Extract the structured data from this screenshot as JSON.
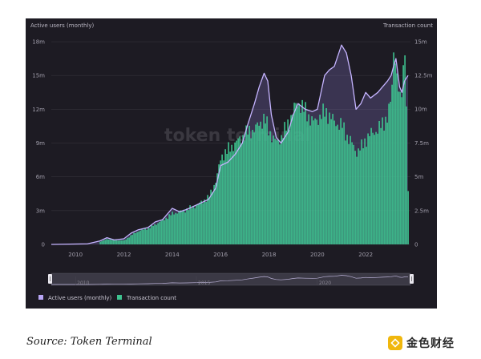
{
  "chart_data": {
    "type": "bar+line",
    "left_axis_title": "Active users (monthly)",
    "right_axis_title": "Transaction count",
    "watermark": "token terminal",
    "left_ticks": [
      "0",
      "3m",
      "6m",
      "9m",
      "12m",
      "15m",
      "18m"
    ],
    "left_tick_values": [
      0,
      3,
      6,
      9,
      12,
      15,
      18
    ],
    "right_ticks": [
      "0",
      "2.5m",
      "5m",
      "7.5m",
      "10m",
      "12.5m",
      "15m"
    ],
    "right_tick_values": [
      0,
      2.5,
      5,
      7.5,
      10,
      12.5,
      15
    ],
    "x_ticks": [
      "2010",
      "2012",
      "2014",
      "2016",
      "2018",
      "2020",
      "2022"
    ],
    "x_tick_values": [
      2010,
      2012,
      2014,
      2016,
      2018,
      2020,
      2022
    ],
    "xlim": [
      2009.0,
      2023.85
    ],
    "ylim_left": [
      0,
      18.5
    ],
    "ylim_right": [
      0,
      15.4
    ],
    "grid": true,
    "legend_position": "bottom-left",
    "series": [
      {
        "name": "Active users (monthly)",
        "axis": "left",
        "type": "line",
        "color": "#c5b4ff",
        "points": [
          [
            2009.0,
            0.0
          ],
          [
            2010.5,
            0.05
          ],
          [
            2011.0,
            0.3
          ],
          [
            2011.3,
            0.6
          ],
          [
            2011.6,
            0.4
          ],
          [
            2012.0,
            0.5
          ],
          [
            2012.3,
            1.0
          ],
          [
            2012.6,
            1.3
          ],
          [
            2013.0,
            1.5
          ],
          [
            2013.3,
            2.0
          ],
          [
            2013.6,
            2.2
          ],
          [
            2014.0,
            3.2
          ],
          [
            2014.3,
            2.9
          ],
          [
            2014.6,
            3.1
          ],
          [
            2015.0,
            3.5
          ],
          [
            2015.5,
            4.0
          ],
          [
            2015.8,
            5.0
          ],
          [
            2016.0,
            7.0
          ],
          [
            2016.3,
            7.3
          ],
          [
            2016.6,
            8.0
          ],
          [
            2016.9,
            9.0
          ],
          [
            2017.1,
            10.5
          ],
          [
            2017.4,
            12.5
          ],
          [
            2017.6,
            14.0
          ],
          [
            2017.8,
            15.2
          ],
          [
            2017.95,
            14.5
          ],
          [
            2018.1,
            11.5
          ],
          [
            2018.3,
            9.5
          ],
          [
            2018.5,
            9.0
          ],
          [
            2018.8,
            10.0
          ],
          [
            2019.0,
            11.5
          ],
          [
            2019.2,
            12.5
          ],
          [
            2019.5,
            12.0
          ],
          [
            2019.8,
            11.8
          ],
          [
            2020.0,
            12.0
          ],
          [
            2020.3,
            15.0
          ],
          [
            2020.5,
            15.5
          ],
          [
            2020.7,
            15.8
          ],
          [
            2021.0,
            17.7
          ],
          [
            2021.2,
            17.0
          ],
          [
            2021.4,
            15.0
          ],
          [
            2021.6,
            12.0
          ],
          [
            2021.8,
            12.5
          ],
          [
            2022.0,
            13.5
          ],
          [
            2022.2,
            13.0
          ],
          [
            2022.5,
            13.5
          ],
          [
            2022.7,
            14.0
          ],
          [
            2022.9,
            14.5
          ],
          [
            2023.05,
            15.0
          ],
          [
            2023.15,
            15.8
          ],
          [
            2023.25,
            16.5
          ],
          [
            2023.4,
            14.0
          ],
          [
            2023.5,
            13.5
          ],
          [
            2023.6,
            14.5
          ],
          [
            2023.75,
            15.0
          ]
        ]
      },
      {
        "name": "Transaction count",
        "axis": "right",
        "type": "bar",
        "color": "#3ec28f",
        "points": [
          [
            2009.0,
            0.0
          ],
          [
            2010.5,
            0.04
          ],
          [
            2011.0,
            0.2
          ],
          [
            2011.3,
            0.4
          ],
          [
            2011.6,
            0.3
          ],
          [
            2012.0,
            0.3
          ],
          [
            2012.3,
            0.7
          ],
          [
            2012.6,
            1.0
          ],
          [
            2013.0,
            1.2
          ],
          [
            2013.3,
            1.5
          ],
          [
            2013.6,
            1.8
          ],
          [
            2014.0,
            2.3
          ],
          [
            2014.3,
            2.4
          ],
          [
            2014.6,
            2.6
          ],
          [
            2015.0,
            2.9
          ],
          [
            2015.5,
            3.5
          ],
          [
            2015.8,
            4.8
          ],
          [
            2016.0,
            6.5
          ],
          [
            2016.3,
            7.0
          ],
          [
            2016.6,
            7.5
          ],
          [
            2016.9,
            8.0
          ],
          [
            2017.1,
            8.3
          ],
          [
            2017.4,
            8.5
          ],
          [
            2017.6,
            9.0
          ],
          [
            2017.8,
            9.3
          ],
          [
            2017.95,
            8.5
          ],
          [
            2018.1,
            8.0
          ],
          [
            2018.3,
            7.5
          ],
          [
            2018.5,
            8.0
          ],
          [
            2018.8,
            9.0
          ],
          [
            2019.0,
            10.0
          ],
          [
            2019.2,
            10.5
          ],
          [
            2019.5,
            9.8
          ],
          [
            2019.8,
            9.0
          ],
          [
            2020.0,
            9.3
          ],
          [
            2020.3,
            9.8
          ],
          [
            2020.5,
            9.5
          ],
          [
            2020.7,
            9.0
          ],
          [
            2021.0,
            8.8
          ],
          [
            2021.2,
            8.0
          ],
          [
            2021.4,
            7.5
          ],
          [
            2021.6,
            6.8
          ],
          [
            2021.8,
            7.2
          ],
          [
            2022.0,
            7.8
          ],
          [
            2022.2,
            8.2
          ],
          [
            2022.5,
            8.5
          ],
          [
            2022.7,
            9.0
          ],
          [
            2022.9,
            9.5
          ],
          [
            2023.05,
            11.0
          ],
          [
            2023.15,
            15.3
          ],
          [
            2023.25,
            12.5
          ],
          [
            2023.4,
            10.5
          ],
          [
            2023.5,
            12.0
          ],
          [
            2023.6,
            15.2
          ],
          [
            2023.75,
            2.1
          ]
        ]
      }
    ],
    "navigator": {
      "ticks": [
        "2010",
        "2015",
        "2020"
      ],
      "tick_values": [
        2010,
        2015,
        2020
      ]
    }
  },
  "source": {
    "text": "Source: Token Terminal"
  },
  "logo": {
    "text": "金色财经"
  }
}
